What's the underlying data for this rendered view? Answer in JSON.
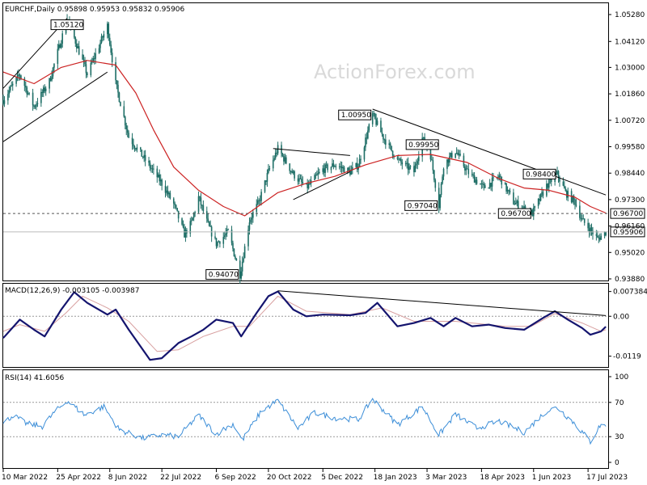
{
  "chart_data": [
    {
      "type": "candlestick",
      "pane": "price",
      "header": "EURCHF,Daily  0.95898 0.95953 0.95832 0.95906",
      "watermark": "ActionForex.com",
      "ylim": [
        0.9388,
        1.0528
      ],
      "yticks": [
        "1.05280",
        "1.04120",
        "1.03000",
        "1.01860",
        "1.00720",
        "0.99580",
        "0.98440",
        "0.97300",
        "0.96160",
        "0.95020",
        "0.93880"
      ],
      "ytick_values": [
        1.0528,
        1.0412,
        1.03,
        1.0186,
        1.0072,
        0.9958,
        0.9844,
        0.973,
        0.9616,
        0.9502,
        0.9388
      ],
      "x_dates": [
        "10 Mar 2022",
        "25 Apr 2022",
        "8 Jun 2022",
        "22 Jul 2022",
        "6 Sep 2022",
        "20 Oct 2022",
        "5 Dec 2022",
        "18 Jan 2023",
        "3 Mar 2023",
        "18 Apr 2023",
        "1 Jun 2023",
        "17 Jul 2023"
      ],
      "close_path": [
        {
          "date": "2022-03-10",
          "close": 1.016
        },
        {
          "date": "2022-03-24",
          "close": 1.027
        },
        {
          "date": "2022-04-05",
          "close": 1.013
        },
        {
          "date": "2022-04-18",
          "close": 1.024
        },
        {
          "date": "2022-04-28",
          "close": 1.042
        },
        {
          "date": "2022-05-03",
          "close": 1.0512
        },
        {
          "date": "2022-05-20",
          "close": 1.027
        },
        {
          "date": "2022-06-06",
          "close": 1.048
        },
        {
          "date": "2022-06-13",
          "close": 1.023
        },
        {
          "date": "2022-06-24",
          "close": 1.0
        },
        {
          "date": "2022-07-08",
          "close": 0.99
        },
        {
          "date": "2022-07-22",
          "close": 0.98
        },
        {
          "date": "2022-08-01",
          "close": 0.971
        },
        {
          "date": "2022-08-10",
          "close": 0.958
        },
        {
          "date": "2022-08-16",
          "close": 0.963
        },
        {
          "date": "2022-08-22",
          "close": 0.974
        },
        {
          "date": "2022-08-30",
          "close": 0.962
        },
        {
          "date": "2022-09-06",
          "close": 0.954
        },
        {
          "date": "2022-09-16",
          "close": 0.959
        },
        {
          "date": "2022-09-26",
          "close": 0.9407
        },
        {
          "date": "2022-10-04",
          "close": 0.964
        },
        {
          "date": "2022-10-12",
          "close": 0.972
        },
        {
          "date": "2022-10-20",
          "close": 0.985
        },
        {
          "date": "2022-10-28",
          "close": 0.995
        },
        {
          "date": "2022-11-10",
          "close": 0.984
        },
        {
          "date": "2022-11-21",
          "close": 0.978
        },
        {
          "date": "2022-12-05",
          "close": 0.986
        },
        {
          "date": "2022-12-15",
          "close": 0.988
        },
        {
          "date": "2022-12-28",
          "close": 0.985
        },
        {
          "date": "2023-01-04",
          "close": 0.988
        },
        {
          "date": "2023-01-16",
          "close": 1.0095
        },
        {
          "date": "2023-01-25",
          "close": 1.0
        },
        {
          "date": "2023-02-06",
          "close": 0.99
        },
        {
          "date": "2023-02-20",
          "close": 0.985
        },
        {
          "date": "2023-02-27",
          "close": 0.9995
        },
        {
          "date": "2023-03-06",
          "close": 0.992
        },
        {
          "date": "2023-03-13",
          "close": 0.9704
        },
        {
          "date": "2023-03-17",
          "close": 0.988
        },
        {
          "date": "2023-03-27",
          "close": 0.994
        },
        {
          "date": "2023-04-06",
          "close": 0.985
        },
        {
          "date": "2023-04-20",
          "close": 0.978
        },
        {
          "date": "2023-05-03",
          "close": 0.983
        },
        {
          "date": "2023-05-15",
          "close": 0.972
        },
        {
          "date": "2023-05-24",
          "close": 0.969
        },
        {
          "date": "2023-05-31",
          "close": 0.967
        },
        {
          "date": "2023-06-12",
          "close": 0.979
        },
        {
          "date": "2023-06-21",
          "close": 0.984
        },
        {
          "date": "2023-06-28",
          "close": 0.976
        },
        {
          "date": "2023-07-06",
          "close": 0.972
        },
        {
          "date": "2023-07-12",
          "close": 0.964
        },
        {
          "date": "2023-07-19",
          "close": 0.96
        },
        {
          "date": "2023-07-25",
          "close": 0.956
        },
        {
          "date": "2023-08-01",
          "close": 0.959
        }
      ],
      "ma_path": [
        {
          "date": "2022-03-10",
          "value": 1.028
        },
        {
          "date": "2022-04-05",
          "value": 1.023
        },
        {
          "date": "2022-04-28",
          "value": 1.03
        },
        {
          "date": "2022-05-20",
          "value": 1.033
        },
        {
          "date": "2022-06-13",
          "value": 1.031
        },
        {
          "date": "2022-06-30",
          "value": 1.019
        },
        {
          "date": "2022-07-15",
          "value": 1.003
        },
        {
          "date": "2022-08-01",
          "value": 0.987
        },
        {
          "date": "2022-08-22",
          "value": 0.977
        },
        {
          "date": "2022-09-12",
          "value": 0.97
        },
        {
          "date": "2022-09-30",
          "value": 0.966
        },
        {
          "date": "2022-10-14",
          "value": 0.971
        },
        {
          "date": "2022-10-28",
          "value": 0.976
        },
        {
          "date": "2022-11-21",
          "value": 0.98
        },
        {
          "date": "2022-12-15",
          "value": 0.983
        },
        {
          "date": "2023-01-10",
          "value": 0.988
        },
        {
          "date": "2023-02-06",
          "value": 0.992
        },
        {
          "date": "2023-03-06",
          "value": 0.9925
        },
        {
          "date": "2023-04-06",
          "value": 0.989
        },
        {
          "date": "2023-05-03",
          "value": 0.982
        },
        {
          "date": "2023-05-24",
          "value": 0.978
        },
        {
          "date": "2023-06-14",
          "value": 0.977
        },
        {
          "date": "2023-07-06",
          "value": 0.974
        },
        {
          "date": "2023-07-19",
          "value": 0.97
        },
        {
          "date": "2023-08-01",
          "value": 0.9672
        }
      ],
      "labels": [
        {
          "text": "1.05120",
          "date": "2022-05-03",
          "value": 1.0512,
          "anchor": "below"
        },
        {
          "text": "1.00950",
          "date": "2023-01-16",
          "value": 1.0095,
          "anchor": "left"
        },
        {
          "text": "0.99950",
          "date": "2023-02-27",
          "value": 0.9995,
          "anchor": "below"
        },
        {
          "text": "0.98400",
          "date": "2023-06-21",
          "value": 0.984,
          "anchor": "left"
        },
        {
          "text": "0.97040",
          "date": "2023-03-13",
          "value": 0.9704,
          "anchor": "left"
        },
        {
          "text": "0.96700",
          "date": "2023-05-31",
          "value": 0.967,
          "anchor": "left"
        },
        {
          "text": "0.94070",
          "date": "2022-09-26",
          "value": 0.9407,
          "anchor": "left"
        }
      ],
      "hline": {
        "value": 0.967,
        "text": "0.96700",
        "style": "dashed"
      },
      "last_price": {
        "value": 0.95906,
        "text": "0.95906"
      },
      "trendlines": [
        {
          "from": {
            "date": "2022-03-10",
            "value": 1.021
          },
          "to": {
            "date": "2022-05-03",
            "value": 1.0512
          }
        },
        {
          "from": {
            "date": "2022-03-10",
            "value": 0.998
          },
          "to": {
            "date": "2022-06-06",
            "value": 1.028
          }
        },
        {
          "from": {
            "date": "2022-10-24",
            "value": 0.995
          },
          "to": {
            "date": "2022-12-28",
            "value": 0.992
          }
        },
        {
          "from": {
            "date": "2022-11-10",
            "value": 0.973
          },
          "to": {
            "date": "2022-12-28",
            "value": 0.985
          }
        },
        {
          "from": {
            "date": "2023-01-16",
            "value": 1.012
          },
          "to": {
            "date": "2023-08-01",
            "value": 0.975
          }
        }
      ]
    },
    {
      "type": "line",
      "pane": "macd",
      "header": "MACD(12,26,9) -0.003105 -0.003987",
      "ylim": [
        -0.0144,
        0.0085
      ],
      "yticks": [
        "0.007384",
        "0.00",
        "-0.0119"
      ],
      "ytick_values": [
        0.007384,
        0.0,
        -0.0119
      ],
      "macd_path": [
        {
          "date": "2022-03-10",
          "value": -0.0065
        },
        {
          "date": "2022-03-24",
          "value": -0.001
        },
        {
          "date": "2022-04-05",
          "value": -0.004
        },
        {
          "date": "2022-04-14",
          "value": -0.006
        },
        {
          "date": "2022-04-28",
          "value": 0.002
        },
        {
          "date": "2022-05-09",
          "value": 0.0072
        },
        {
          "date": "2022-05-20",
          "value": 0.004
        },
        {
          "date": "2022-06-06",
          "value": 0.0005
        },
        {
          "date": "2022-06-13",
          "value": 0.002
        },
        {
          "date": "2022-06-24",
          "value": -0.004
        },
        {
          "date": "2022-07-12",
          "value": -0.013
        },
        {
          "date": "2022-07-22",
          "value": -0.0125
        },
        {
          "date": "2022-08-05",
          "value": -0.008
        },
        {
          "date": "2022-08-16",
          "value": -0.006
        },
        {
          "date": "2022-08-26",
          "value": -0.004
        },
        {
          "date": "2022-09-06",
          "value": -0.001
        },
        {
          "date": "2022-09-20",
          "value": -0.002
        },
        {
          "date": "2022-09-27",
          "value": -0.006
        },
        {
          "date": "2022-10-10",
          "value": 0.001
        },
        {
          "date": "2022-10-20",
          "value": 0.006
        },
        {
          "date": "2022-10-28",
          "value": 0.0074
        },
        {
          "date": "2022-11-10",
          "value": 0.002
        },
        {
          "date": "2022-11-21",
          "value": 0.0
        },
        {
          "date": "2022-12-05",
          "value": 0.0005
        },
        {
          "date": "2022-12-28",
          "value": 0.0003
        },
        {
          "date": "2023-01-10",
          "value": 0.001
        },
        {
          "date": "2023-01-20",
          "value": 0.004
        },
        {
          "date": "2023-02-06",
          "value": -0.003
        },
        {
          "date": "2023-02-20",
          "value": -0.002
        },
        {
          "date": "2023-03-06",
          "value": -0.0005
        },
        {
          "date": "2023-03-17",
          "value": -0.003
        },
        {
          "date": "2023-03-27",
          "value": -0.0005
        },
        {
          "date": "2023-04-10",
          "value": -0.003
        },
        {
          "date": "2023-04-24",
          "value": -0.0025
        },
        {
          "date": "2023-05-08",
          "value": -0.0035
        },
        {
          "date": "2023-05-24",
          "value": -0.004
        },
        {
          "date": "2023-06-09",
          "value": -0.0005
        },
        {
          "date": "2023-06-19",
          "value": 0.0015
        },
        {
          "date": "2023-06-30",
          "value": -0.001
        },
        {
          "date": "2023-07-12",
          "value": -0.0035
        },
        {
          "date": "2023-07-19",
          "value": -0.0055
        },
        {
          "date": "2023-07-28",
          "value": -0.0045
        },
        {
          "date": "2023-08-01",
          "value": -0.0031
        }
      ],
      "signal_path": [
        {
          "date": "2022-03-10",
          "value": -0.0045
        },
        {
          "date": "2022-03-24",
          "value": -0.0025
        },
        {
          "date": "2022-04-14",
          "value": -0.0045
        },
        {
          "date": "2022-05-02",
          "value": 0.001
        },
        {
          "date": "2022-05-16",
          "value": 0.006
        },
        {
          "date": "2022-06-06",
          "value": 0.0025
        },
        {
          "date": "2022-06-24",
          "value": -0.0015
        },
        {
          "date": "2022-07-18",
          "value": -0.0105
        },
        {
          "date": "2022-08-05",
          "value": -0.01
        },
        {
          "date": "2022-08-26",
          "value": -0.006
        },
        {
          "date": "2022-09-20",
          "value": -0.003
        },
        {
          "date": "2022-10-04",
          "value": -0.003
        },
        {
          "date": "2022-10-28",
          "value": 0.006
        },
        {
          "date": "2022-11-21",
          "value": 0.0015
        },
        {
          "date": "2022-12-28",
          "value": 0.0005
        },
        {
          "date": "2023-01-24",
          "value": 0.0025
        },
        {
          "date": "2023-02-20",
          "value": -0.0015
        },
        {
          "date": "2023-03-27",
          "value": -0.0015
        },
        {
          "date": "2023-05-08",
          "value": -0.003
        },
        {
          "date": "2023-05-30",
          "value": -0.003
        },
        {
          "date": "2023-06-19",
          "value": 0.0008
        },
        {
          "date": "2023-07-12",
          "value": -0.002
        },
        {
          "date": "2023-07-28",
          "value": -0.0045
        },
        {
          "date": "2023-08-01",
          "value": -0.004
        }
      ],
      "trendline": {
        "from": {
          "date": "2022-10-28",
          "value": 0.0076
        },
        "to": {
          "date": "2023-08-01",
          "value": 0.0002
        }
      }
    },
    {
      "type": "line",
      "pane": "rsi",
      "header": "RSI(14) 41.6056",
      "ylim": [
        0,
        100
      ],
      "yticks": [
        "100",
        "70",
        "30",
        "0"
      ],
      "ytick_values": [
        100,
        70,
        30,
        0
      ],
      "levels": [
        70,
        30
      ],
      "rsi_path": [
        {
          "date": "2022-03-10",
          "value": 45
        },
        {
          "date": "2022-03-18",
          "value": 55
        },
        {
          "date": "2022-03-30",
          "value": 45
        },
        {
          "date": "2022-04-12",
          "value": 42
        },
        {
          "date": "2022-04-22",
          "value": 58
        },
        {
          "date": "2022-05-03",
          "value": 72
        },
        {
          "date": "2022-05-18",
          "value": 55
        },
        {
          "date": "2022-06-03",
          "value": 65
        },
        {
          "date": "2022-06-16",
          "value": 38
        },
        {
          "date": "2022-07-06",
          "value": 28
        },
        {
          "date": "2022-07-22",
          "value": 32
        },
        {
          "date": "2022-08-05",
          "value": 30
        },
        {
          "date": "2022-08-22",
          "value": 55
        },
        {
          "date": "2022-09-06",
          "value": 33
        },
        {
          "date": "2022-09-20",
          "value": 45
        },
        {
          "date": "2022-09-28",
          "value": 26
        },
        {
          "date": "2022-10-14",
          "value": 60
        },
        {
          "date": "2022-10-28",
          "value": 72
        },
        {
          "date": "2022-11-14",
          "value": 40
        },
        {
          "date": "2022-11-28",
          "value": 58
        },
        {
          "date": "2022-12-15",
          "value": 52
        },
        {
          "date": "2023-01-04",
          "value": 50
        },
        {
          "date": "2023-01-16",
          "value": 74
        },
        {
          "date": "2023-02-06",
          "value": 44
        },
        {
          "date": "2023-02-27",
          "value": 65
        },
        {
          "date": "2023-03-13",
          "value": 32
        },
        {
          "date": "2023-03-27",
          "value": 56
        },
        {
          "date": "2023-04-14",
          "value": 40
        },
        {
          "date": "2023-05-03",
          "value": 48
        },
        {
          "date": "2023-05-24",
          "value": 35
        },
        {
          "date": "2023-06-12",
          "value": 60
        },
        {
          "date": "2023-06-21",
          "value": 64
        },
        {
          "date": "2023-07-06",
          "value": 45
        },
        {
          "date": "2023-07-19",
          "value": 24
        },
        {
          "date": "2023-07-28",
          "value": 45
        },
        {
          "date": "2023-08-01",
          "value": 41.6
        }
      ]
    }
  ],
  "colors": {
    "background": "#ffffff",
    "candle": "#1e6e66",
    "ma": "#cc2222",
    "macd": "#14146e",
    "signal": "#d8a0a0",
    "rsi": "#3c8ed8",
    "grid_dash": "#999999",
    "trendline": "#000000",
    "border": "#000000"
  }
}
